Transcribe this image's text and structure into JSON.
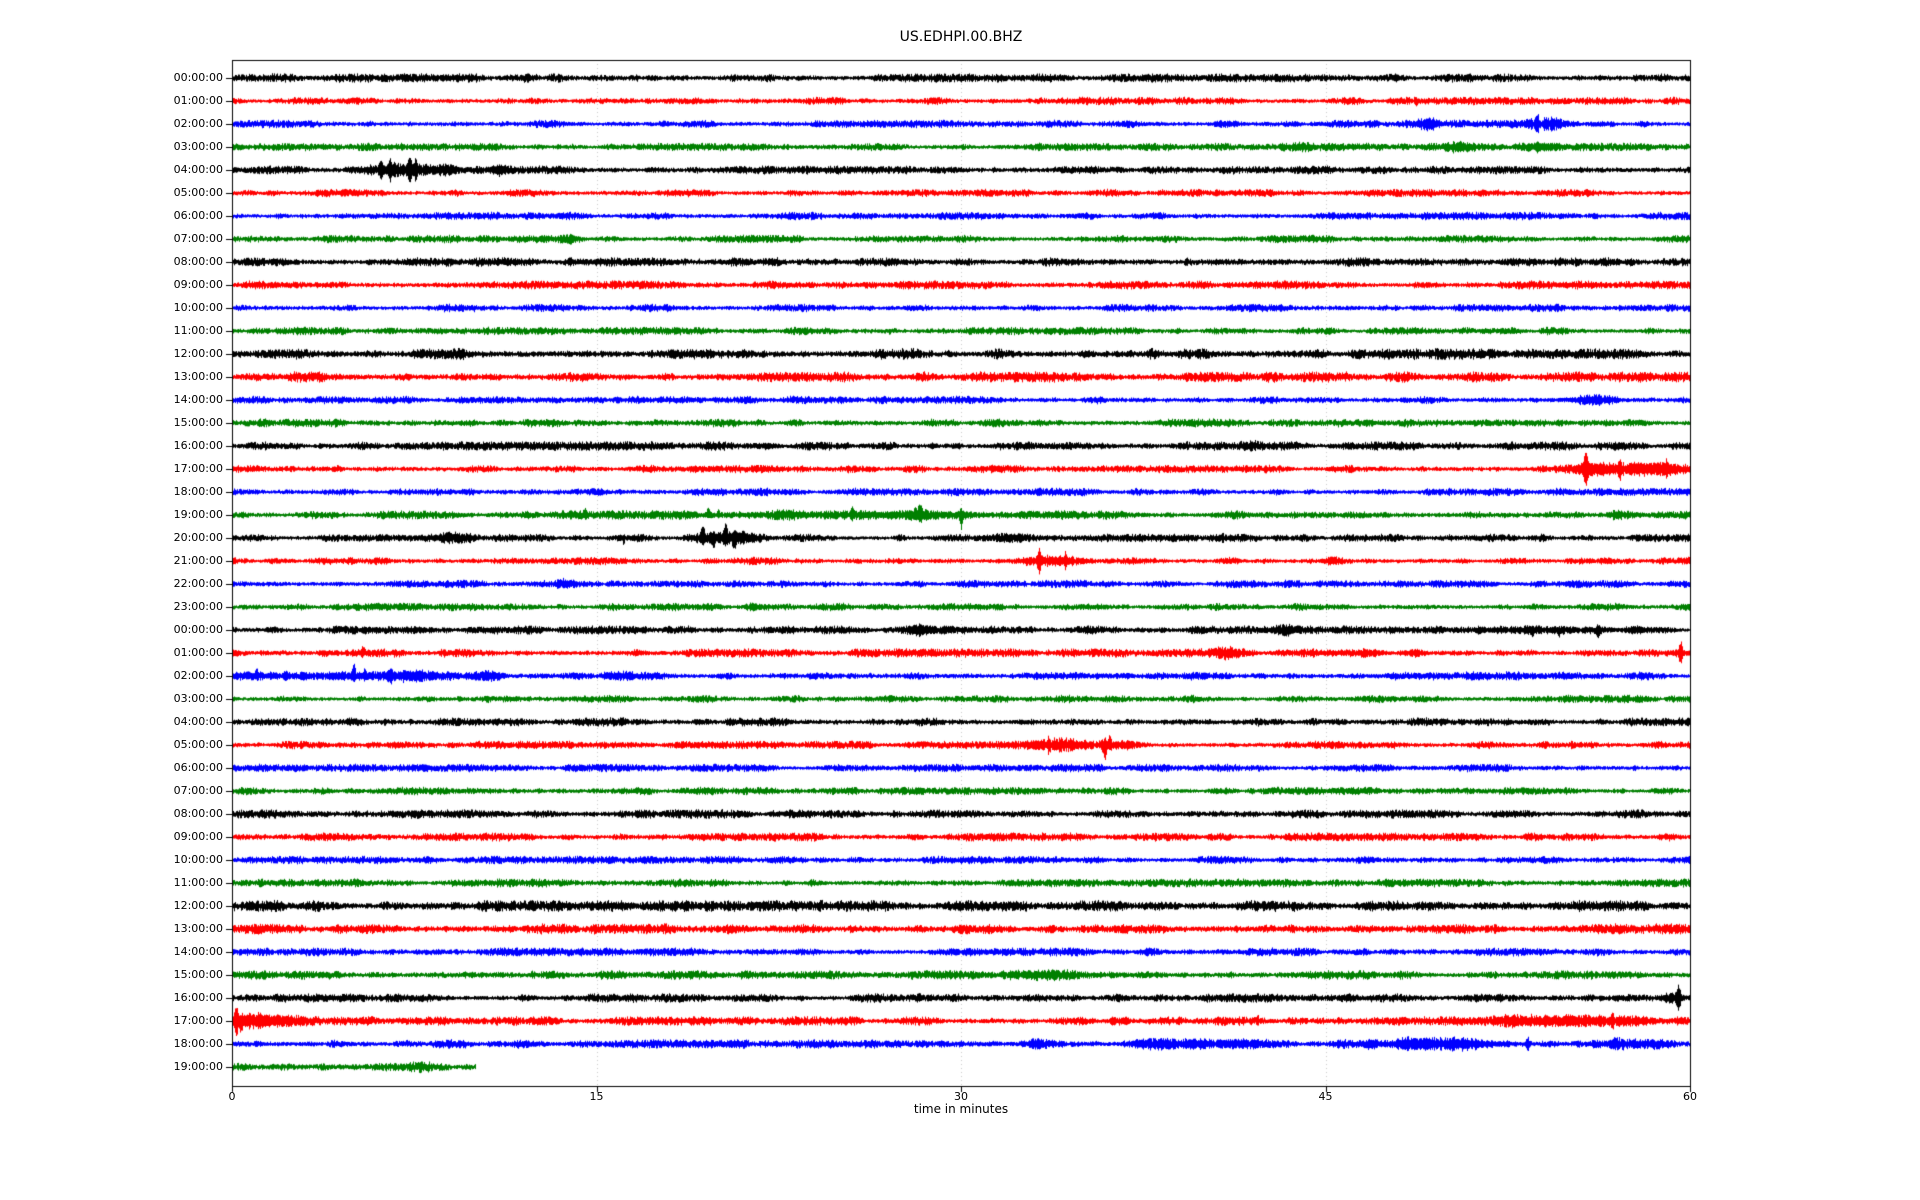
{
  "title": "US.EDHPI.00.BHZ",
  "x_axis": {
    "label": "time in minutes",
    "tick_labels": [
      "0",
      "15",
      "30",
      "45",
      "60"
    ],
    "tick_minutes": [
      0,
      15,
      30,
      45,
      60
    ],
    "grid_minutes": [
      15,
      30,
      45
    ],
    "range": [
      0,
      60
    ]
  },
  "colors": {
    "black": "#000000",
    "red": "#ff0000",
    "blue": "#0000ff",
    "green": "#008000",
    "grid": "#9b9b9b",
    "spine": "#000000",
    "background": "#ffffff"
  },
  "chart_data": {
    "type": "line",
    "subtype": "helicorder-dayplot",
    "title": "US.EDHPI.00.BHZ",
    "xlabel": "time in minutes",
    "xlim": [
      0,
      60
    ],
    "minutes_per_row": 60,
    "color_cycle": [
      "black",
      "red",
      "blue",
      "green"
    ],
    "rows": [
      {
        "label": "00:00:00",
        "color": "black",
        "base_amp": 3.3,
        "events": []
      },
      {
        "label": "01:00:00",
        "color": "red",
        "base_amp": 3.0,
        "events": [
          {
            "type": "spike",
            "t": 48.7,
            "amp": 5,
            "w": 0.1,
            "dir": 0
          }
        ]
      },
      {
        "label": "02:00:00",
        "color": "blue",
        "base_amp": 3.0,
        "events": [
          {
            "type": "burst",
            "t": 41.0,
            "amp": 2.5,
            "w": 0.4
          },
          {
            "type": "burst",
            "t": 49.2,
            "amp": 4,
            "w": 0.3
          },
          {
            "type": "spike",
            "t": 53.7,
            "amp": 6,
            "w": 0.1,
            "dir": 0
          },
          {
            "type": "burst",
            "t": 54.0,
            "amp": 5,
            "w": 0.6
          }
        ]
      },
      {
        "label": "03:00:00",
        "color": "green",
        "base_amp": 3.0,
        "events": [
          {
            "type": "burst",
            "t": 44.0,
            "amp": 2,
            "w": 0.3
          },
          {
            "type": "burst",
            "t": 50.5,
            "amp": 3,
            "w": 0.4
          },
          {
            "type": "burst",
            "t": 54.0,
            "amp": 3.5,
            "w": 0.5
          }
        ]
      },
      {
        "label": "04:00:00",
        "color": "black",
        "base_amp": 3.2,
        "events": [
          {
            "type": "spike",
            "t": 6.1,
            "amp": 7,
            "w": 0.1,
            "dir": 0
          },
          {
            "type": "spike",
            "t": 6.5,
            "amp": 6,
            "w": 0.1,
            "dir": 0
          },
          {
            "type": "burst",
            "t": 6.8,
            "amp": 6,
            "w": 0.8
          },
          {
            "type": "spike",
            "t": 7.3,
            "amp": 11,
            "w": 0.12,
            "dir": 0
          },
          {
            "type": "spike",
            "t": 7.55,
            "amp": 9,
            "w": 0.1,
            "dir": 0
          },
          {
            "type": "burst",
            "t": 8.6,
            "amp": 3,
            "w": 0.4
          },
          {
            "type": "burst",
            "t": 10.9,
            "amp": 4,
            "w": 0.25
          }
        ]
      },
      {
        "label": "05:00:00",
        "color": "red",
        "base_amp": 3.0,
        "events": []
      },
      {
        "label": "06:00:00",
        "color": "blue",
        "base_amp": 3.0,
        "events": []
      },
      {
        "label": "07:00:00",
        "color": "green",
        "base_amp": 3.0,
        "events": [
          {
            "type": "burst",
            "t": 14.0,
            "amp": 2,
            "w": 0.3
          }
        ]
      },
      {
        "label": "08:00:00",
        "color": "black",
        "base_amp": 3.4,
        "events": []
      },
      {
        "label": "09:00:00",
        "color": "red",
        "base_amp": 3.2,
        "events": []
      },
      {
        "label": "10:00:00",
        "color": "blue",
        "base_amp": 3.0,
        "events": []
      },
      {
        "label": "11:00:00",
        "color": "green",
        "base_amp": 3.0,
        "events": []
      },
      {
        "label": "12:00:00",
        "color": "black",
        "base_amp": 4.2,
        "events": []
      },
      {
        "label": "13:00:00",
        "color": "red",
        "base_amp": 4.0,
        "events": []
      },
      {
        "label": "14:00:00",
        "color": "blue",
        "base_amp": 3.0,
        "events": [
          {
            "type": "burst",
            "t": 56.0,
            "amp": 2.5,
            "w": 0.8
          }
        ]
      },
      {
        "label": "15:00:00",
        "color": "green",
        "base_amp": 3.2,
        "events": []
      },
      {
        "label": "16:00:00",
        "color": "black",
        "base_amp": 3.4,
        "events": [
          {
            "type": "burst",
            "t": 22.0,
            "amp": 2.5,
            "w": 0.3
          },
          {
            "type": "burst",
            "t": 42.0,
            "amp": 2,
            "w": 0.3
          }
        ]
      },
      {
        "label": "17:00:00",
        "color": "red",
        "base_amp": 3.0,
        "events": [
          {
            "type": "spike",
            "t": 55.7,
            "amp": 13,
            "w": 0.15,
            "dir": 0
          },
          {
            "type": "burst",
            "t": 56.0,
            "amp": 4,
            "w": 0.5
          },
          {
            "type": "spike",
            "t": 57.1,
            "amp": 6,
            "w": 0.1,
            "dir": 0
          },
          {
            "type": "burst",
            "t": 57.5,
            "amp": 4,
            "w": 1.0
          },
          {
            "type": "spike",
            "t": 59.0,
            "amp": 5,
            "w": 0.1,
            "dir": 0
          },
          {
            "type": "burst",
            "t": 59.0,
            "amp": 3.5,
            "w": 0.6
          }
        ]
      },
      {
        "label": "18:00:00",
        "color": "blue",
        "base_amp": 3.0,
        "events": []
      },
      {
        "label": "19:00:00",
        "color": "green",
        "base_amp": 3.2,
        "events": [
          {
            "type": "burst",
            "t": 24.5,
            "amp": 1.5,
            "w": 6
          },
          {
            "type": "spike",
            "t": 14.5,
            "amp": 6,
            "w": 0.1,
            "dir": 1
          },
          {
            "type": "spike",
            "t": 19.6,
            "amp": 8,
            "w": 0.1,
            "dir": 1
          },
          {
            "type": "spike",
            "t": 20.0,
            "amp": 5,
            "w": 0.08,
            "dir": 1
          },
          {
            "type": "spike",
            "t": 25.5,
            "amp": 7,
            "w": 0.1,
            "dir": 1
          },
          {
            "type": "spike",
            "t": 28.3,
            "amp": 9,
            "w": 0.12,
            "dir": 1
          },
          {
            "type": "burst",
            "t": 28.3,
            "amp": 3,
            "w": 0.3
          },
          {
            "type": "spike",
            "t": 30.0,
            "amp": 13,
            "w": 0.1,
            "dir": -1
          },
          {
            "type": "burst",
            "t": 57.2,
            "amp": 4,
            "w": 0.4
          }
        ]
      },
      {
        "label": "20:00:00",
        "color": "black",
        "base_amp": 3.0,
        "events": [
          {
            "type": "burst",
            "t": 9.3,
            "amp": 3.5,
            "w": 0.5
          },
          {
            "type": "spike",
            "t": 16.1,
            "amp": 9,
            "w": 0.06,
            "dir": -1
          },
          {
            "type": "spike",
            "t": 19.35,
            "amp": 12,
            "w": 0.12,
            "dir": 1
          },
          {
            "type": "burst",
            "t": 19.6,
            "amp": 5,
            "w": 0.5
          },
          {
            "type": "spike",
            "t": 19.8,
            "amp": 7,
            "w": 0.1,
            "dir": -1
          },
          {
            "type": "spike",
            "t": 20.3,
            "amp": 14,
            "w": 0.12,
            "dir": 1
          },
          {
            "type": "spike",
            "t": 20.65,
            "amp": 8,
            "w": 0.1,
            "dir": -1
          },
          {
            "type": "burst",
            "t": 20.9,
            "amp": 4,
            "w": 0.5
          },
          {
            "type": "burst",
            "t": 31.9,
            "amp": 2.5,
            "w": 0.4
          },
          {
            "type": "burst",
            "t": 40.7,
            "amp": 2,
            "w": 0.3
          }
        ]
      },
      {
        "label": "21:00:00",
        "color": "red",
        "base_amp": 3.0,
        "events": [
          {
            "type": "spike",
            "t": 33.2,
            "amp": 9,
            "w": 0.12,
            "dir": 0
          },
          {
            "type": "burst",
            "t": 33.9,
            "amp": 4.5,
            "w": 0.9
          },
          {
            "type": "spike",
            "t": 34.3,
            "amp": 6,
            "w": 0.1,
            "dir": 0
          },
          {
            "type": "burst",
            "t": 45.2,
            "amp": 2.5,
            "w": 0.25
          }
        ]
      },
      {
        "label": "22:00:00",
        "color": "blue",
        "base_amp": 3.0,
        "events": [
          {
            "type": "burst",
            "t": 13.7,
            "amp": 2.5,
            "w": 0.3
          }
        ]
      },
      {
        "label": "23:00:00",
        "color": "green",
        "base_amp": 3.0,
        "events": [
          {
            "type": "burst",
            "t": 21.5,
            "amp": 3,
            "w": 0.3
          },
          {
            "type": "burst",
            "t": 35.6,
            "amp": 2,
            "w": 0.3
          }
        ]
      },
      {
        "label": "00:00:00",
        "color": "black",
        "base_amp": 3.2,
        "events": [
          {
            "type": "burst",
            "t": 28.4,
            "amp": 4.5,
            "w": 0.3
          },
          {
            "type": "burst",
            "t": 43.4,
            "amp": 3,
            "w": 0.3
          },
          {
            "type": "spike",
            "t": 53.5,
            "amp": 6,
            "w": 0.1,
            "dir": -1
          },
          {
            "type": "burst",
            "t": 54.0,
            "amp": 3,
            "w": 1.2
          },
          {
            "type": "spike",
            "t": 54.6,
            "amp": 6,
            "w": 0.1,
            "dir": -1
          },
          {
            "type": "spike",
            "t": 56.2,
            "amp": 5,
            "w": 0.1,
            "dir": -1
          },
          {
            "type": "burst",
            "t": 57.8,
            "amp": 3,
            "w": 0.4
          }
        ]
      },
      {
        "label": "01:00:00",
        "color": "red",
        "base_amp": 3.3,
        "events": [
          {
            "type": "spike",
            "t": 5.4,
            "amp": 6,
            "w": 0.1,
            "dir": 1
          },
          {
            "type": "burst",
            "t": 41.1,
            "amp": 4,
            "w": 0.5
          },
          {
            "type": "burst",
            "t": 46.8,
            "amp": 3,
            "w": 0.4
          },
          {
            "type": "burst",
            "t": 48.6,
            "amp": 3,
            "w": 0.3
          },
          {
            "type": "spike",
            "t": 59.6,
            "amp": 9,
            "w": 0.12,
            "dir": 0
          },
          {
            "type": "burst",
            "t": 59.6,
            "amp": 3,
            "w": 0.3
          }
        ]
      },
      {
        "label": "02:00:00",
        "color": "blue",
        "base_amp": 3.3,
        "events": [
          {
            "type": "burst",
            "t": 4.0,
            "amp": 2.5,
            "w": 3
          },
          {
            "type": "spike",
            "t": 1.0,
            "amp": 5,
            "w": 0.1,
            "dir": 1
          },
          {
            "type": "spike",
            "t": 2.2,
            "amp": 4,
            "w": 0.1,
            "dir": 0
          },
          {
            "type": "spike",
            "t": 5.0,
            "amp": 13,
            "w": 0.1,
            "dir": 1
          },
          {
            "type": "spike",
            "t": 5.45,
            "amp": 6,
            "w": 0.1,
            "dir": 1
          },
          {
            "type": "spike",
            "t": 6.5,
            "amp": 5,
            "w": 0.1,
            "dir": 0
          },
          {
            "type": "burst",
            "t": 7.5,
            "amp": 3,
            "w": 0.5
          },
          {
            "type": "burst",
            "t": 10.5,
            "amp": 2.5,
            "w": 0.4
          },
          {
            "type": "burst",
            "t": 16.0,
            "amp": 2.5,
            "w": 0.3
          }
        ]
      },
      {
        "label": "03:00:00",
        "color": "green",
        "base_amp": 3.0,
        "events": []
      },
      {
        "label": "04:00:00",
        "color": "black",
        "base_amp": 3.3,
        "events": []
      },
      {
        "label": "05:00:00",
        "color": "red",
        "base_amp": 3.0,
        "events": [
          {
            "type": "spike",
            "t": 33.6,
            "amp": 6,
            "w": 0.1,
            "dir": 0
          },
          {
            "type": "burst",
            "t": 34.3,
            "amp": 4.5,
            "w": 1.2
          },
          {
            "type": "spike",
            "t": 35.9,
            "amp": 15,
            "w": 0.12,
            "dir": -1
          },
          {
            "type": "spike",
            "t": 36.1,
            "amp": 9,
            "w": 0.1,
            "dir": 1
          },
          {
            "type": "burst",
            "t": 36.8,
            "amp": 3.5,
            "w": 0.4
          }
        ]
      },
      {
        "label": "06:00:00",
        "color": "blue",
        "base_amp": 3.0,
        "events": []
      },
      {
        "label": "07:00:00",
        "color": "green",
        "base_amp": 3.0,
        "events": []
      },
      {
        "label": "08:00:00",
        "color": "black",
        "base_amp": 3.4,
        "events": []
      },
      {
        "label": "09:00:00",
        "color": "red",
        "base_amp": 3.2,
        "events": []
      },
      {
        "label": "10:00:00",
        "color": "blue",
        "base_amp": 3.0,
        "events": []
      },
      {
        "label": "11:00:00",
        "color": "green",
        "base_amp": 3.2,
        "events": []
      },
      {
        "label": "12:00:00",
        "color": "black",
        "base_amp": 4.2,
        "events": []
      },
      {
        "label": "13:00:00",
        "color": "red",
        "base_amp": 4.0,
        "events": []
      },
      {
        "label": "14:00:00",
        "color": "blue",
        "base_amp": 3.2,
        "events": []
      },
      {
        "label": "15:00:00",
        "color": "green",
        "base_amp": 3.4,
        "events": [
          {
            "type": "burst",
            "t": 32.5,
            "amp": 2,
            "w": 1.5
          }
        ]
      },
      {
        "label": "16:00:00",
        "color": "black",
        "base_amp": 3.4,
        "events": [
          {
            "type": "burst",
            "t": 59.3,
            "amp": 3,
            "w": 0.3
          },
          {
            "type": "spike",
            "t": 59.5,
            "amp": 11,
            "w": 0.15,
            "dir": 0
          }
        ]
      },
      {
        "label": "17:00:00",
        "color": "red",
        "base_amp": 3.4,
        "events": [
          {
            "type": "spike",
            "t": 0.15,
            "amp": 16,
            "w": 0.12,
            "dir": 0
          },
          {
            "type": "spike",
            "t": 0.35,
            "amp": 10,
            "w": 0.1,
            "dir": -1
          },
          {
            "type": "burst",
            "t": 0.8,
            "amp": 5,
            "w": 0.6
          },
          {
            "type": "burst",
            "t": 2.3,
            "amp": 3.5,
            "w": 0.5
          },
          {
            "type": "burst",
            "t": 36.5,
            "amp": 3,
            "w": 0.3
          },
          {
            "type": "spike",
            "t": 42.2,
            "amp": 7,
            "w": 0.08,
            "dir": 1
          },
          {
            "type": "burst",
            "t": 53.0,
            "amp": 4,
            "w": 0.8
          },
          {
            "type": "burst",
            "t": 55.5,
            "amp": 4,
            "w": 0.9
          },
          {
            "type": "spike",
            "t": 56.8,
            "amp": 6,
            "w": 0.1,
            "dir": 0
          },
          {
            "type": "burst",
            "t": 57.6,
            "amp": 4.5,
            "w": 0.7
          }
        ]
      },
      {
        "label": "18:00:00",
        "color": "blue",
        "base_amp": 3.4,
        "events": [
          {
            "type": "burst",
            "t": 33.0,
            "amp": 3,
            "w": 0.4
          },
          {
            "type": "burst",
            "t": 39.5,
            "amp": 4,
            "w": 1.5
          },
          {
            "type": "burst",
            "t": 48.5,
            "amp": 4.5,
            "w": 1.2
          },
          {
            "type": "burst",
            "t": 50.5,
            "amp": 4.5,
            "w": 1.0
          },
          {
            "type": "spike",
            "t": 53.3,
            "amp": 6,
            "w": 0.1,
            "dir": 0
          },
          {
            "type": "burst",
            "t": 57.5,
            "amp": 3.5,
            "w": 0.8
          }
        ]
      },
      {
        "label": "19:00:00",
        "color": "green",
        "base_amp": 4.3,
        "end_min": 10,
        "events": []
      }
    ]
  }
}
